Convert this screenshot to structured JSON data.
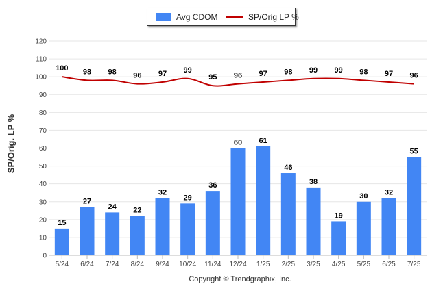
{
  "legend": {
    "bar_label": "Avg CDOM",
    "line_label": "SP/Orig LP %"
  },
  "copyright": "Copyright © Trendgraphix, Inc.",
  "colors": {
    "bar": "#4286f4",
    "line": "#c00000",
    "grid": "#e6e6e6"
  },
  "chart_data": {
    "type": "bar+line",
    "categories": [
      "5/24",
      "6/24",
      "7/24",
      "8/24",
      "9/24",
      "10/24",
      "11/24",
      "12/24",
      "1/25",
      "2/25",
      "3/25",
      "4/25",
      "5/25",
      "6/25",
      "7/25"
    ],
    "series": [
      {
        "name": "Avg CDOM",
        "type": "bar",
        "values": [
          15,
          27,
          24,
          22,
          32,
          29,
          36,
          60,
          61,
          46,
          38,
          19,
          30,
          32,
          55
        ]
      },
      {
        "name": "SP/Orig LP %",
        "type": "line",
        "values": [
          100,
          98,
          98,
          96,
          97,
          99,
          95,
          96,
          97,
          98,
          99,
          99,
          98,
          97,
          96
        ]
      }
    ],
    "ylabel": "SP/Orig. LP %",
    "ylim": [
      0,
      120
    ],
    "yticks": [
      0,
      10,
      20,
      30,
      40,
      50,
      60,
      70,
      80,
      90,
      100,
      110,
      120
    ],
    "grid": true,
    "legend_position": "top-center"
  }
}
